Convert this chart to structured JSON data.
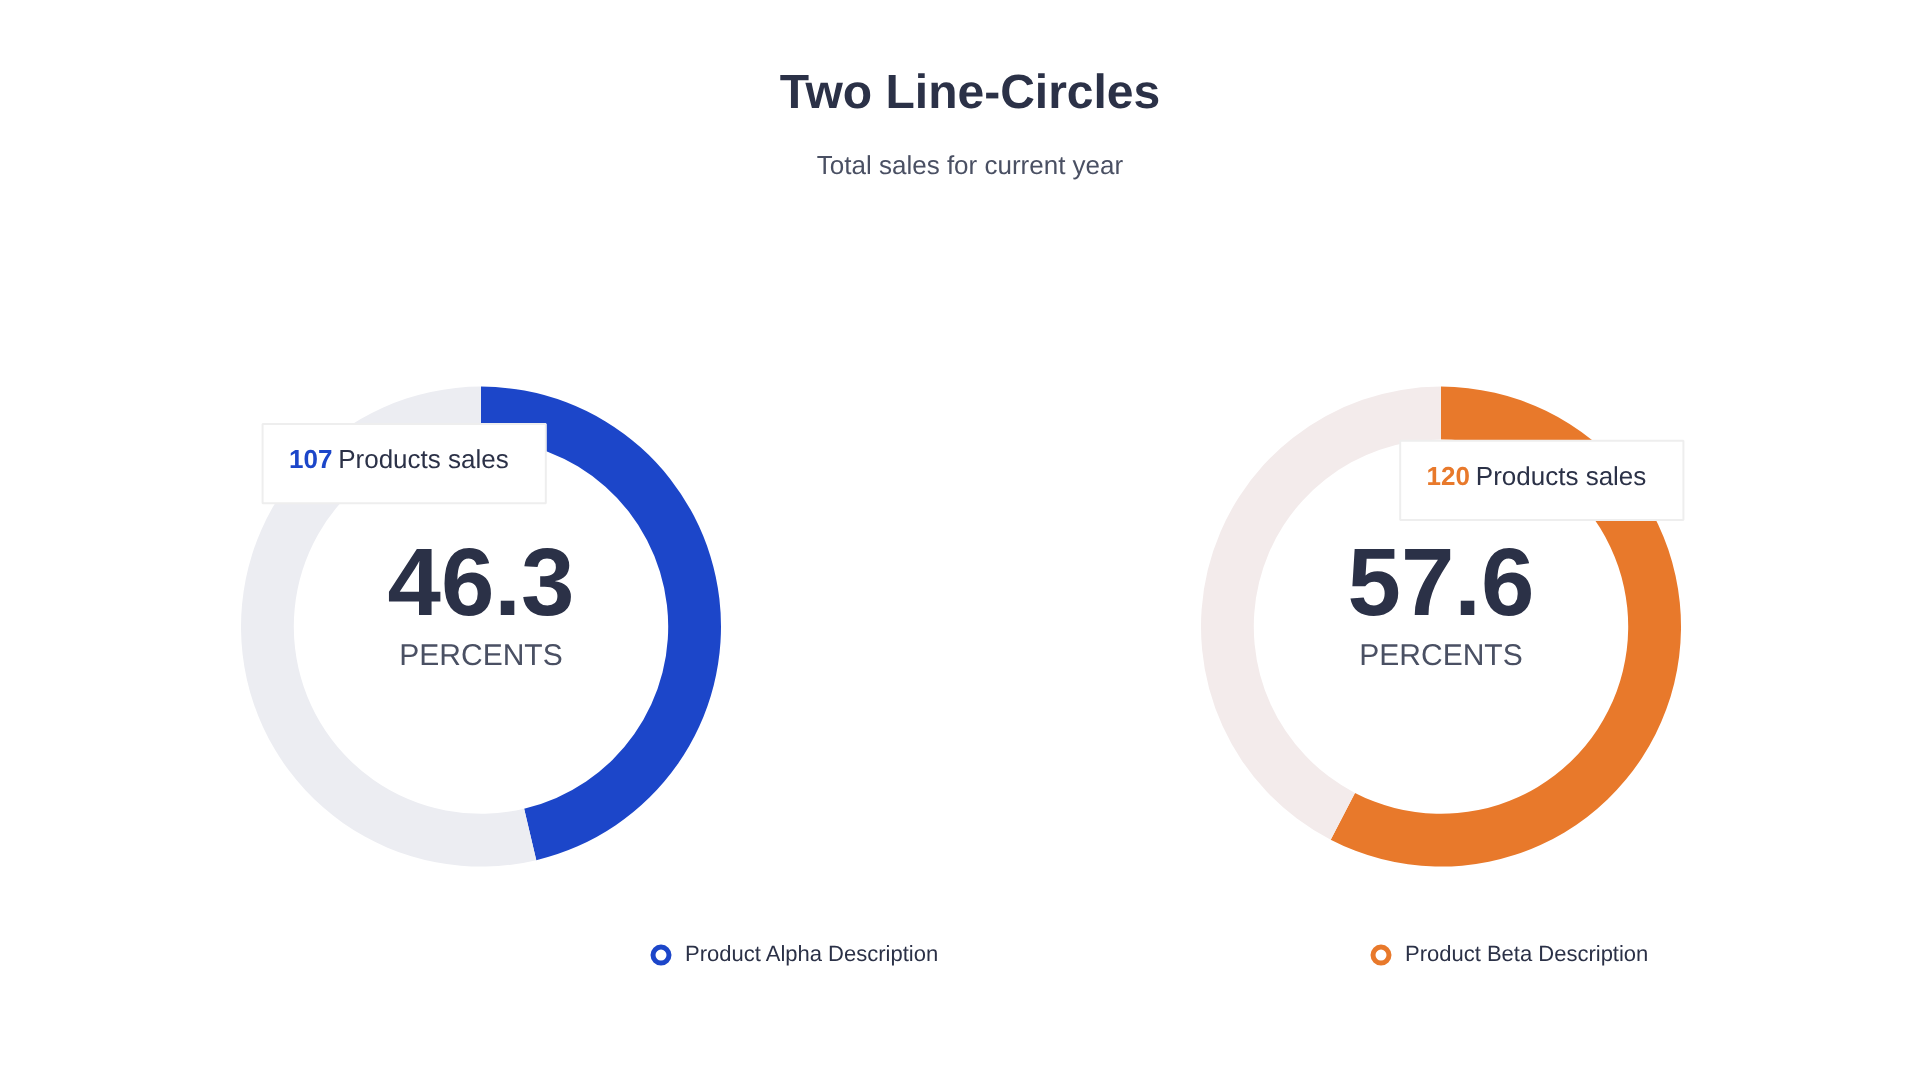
{
  "chart_data": [
    {
      "type": "donut",
      "title": "Two Line-Circles",
      "subtitle": "Total sales for current year",
      "categories": [
        "Product Alpha Description",
        null
      ],
      "values": [
        46.3,
        53.7
      ],
      "colors": [
        "#1c46c9",
        "#ecedf2"
      ],
      "value_labels": [
        "46.3",
        null
      ],
      "annotations": [
        "107 Products sales",
        "PERCENTS"
      ],
      "legend": "bottom"
    },
    {
      "type": "donut",
      "categories": [
        "Product Beta Description",
        null
      ],
      "values": [
        57.6,
        42.4
      ],
      "colors": [
        "#e8792b",
        "#f3ebeb"
      ],
      "value_labels": [
        "57.6",
        null
      ],
      "annotations": [
        "120 Products sales",
        "PERCENTS"
      ],
      "legend": "bottom"
    }
  ]
}
